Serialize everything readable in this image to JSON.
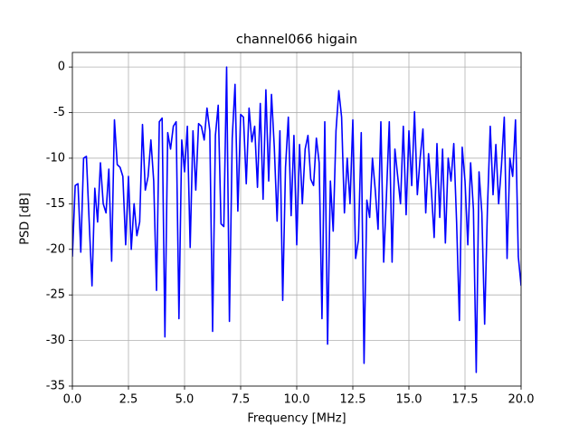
{
  "chart_data": {
    "type": "line",
    "title": "channel066 higain",
    "xlabel": "Frequency [MHz]",
    "ylabel": "PSD [dB]",
    "color": "#0000ff",
    "grid": true,
    "xlim": [
      0,
      20
    ],
    "ylim": [
      -35,
      1.6
    ],
    "xticks": [
      {
        "value": 0,
        "label": "0.0"
      },
      2.5,
      {
        "value": 5,
        "label": "5.0"
      },
      7.5,
      {
        "value": 10,
        "label": "10.0"
      },
      12.5,
      {
        "value": 15,
        "label": "15.0"
      },
      17.5,
      {
        "value": 20,
        "label": "20.0"
      }
    ],
    "yticks": [
      0,
      -5,
      -10,
      -15,
      -20,
      -25,
      -30,
      -35
    ],
    "x": [
      0,
      0.125,
      0.25,
      0.375,
      0.5,
      0.625,
      0.75,
      0.875,
      1,
      1.125,
      1.25,
      1.375,
      1.5,
      1.625,
      1.75,
      1.875,
      2,
      2.125,
      2.25,
      2.375,
      2.5,
      2.625,
      2.75,
      2.875,
      3,
      3.125,
      3.25,
      3.375,
      3.5,
      3.625,
      3.75,
      3.875,
      4,
      4.125,
      4.25,
      4.375,
      4.5,
      4.625,
      4.75,
      4.875,
      5,
      5.125,
      5.25,
      5.375,
      5.5,
      5.625,
      5.75,
      5.875,
      6,
      6.125,
      6.25,
      6.375,
      6.5,
      6.625,
      6.75,
      6.875,
      7,
      7.125,
      7.25,
      7.375,
      7.5,
      7.625,
      7.75,
      7.875,
      8,
      8.125,
      8.25,
      8.375,
      8.5,
      8.625,
      8.75,
      8.875,
      9,
      9.125,
      9.25,
      9.375,
      9.5,
      9.625,
      9.75,
      9.875,
      10,
      10.125,
      10.25,
      10.375,
      10.5,
      10.625,
      10.75,
      10.875,
      11,
      11.125,
      11.25,
      11.375,
      11.5,
      11.625,
      11.75,
      11.875,
      12,
      12.125,
      12.25,
      12.375,
      12.5,
      12.625,
      12.75,
      12.875,
      13,
      13.125,
      13.25,
      13.375,
      13.5,
      13.625,
      13.75,
      13.875,
      14,
      14.125,
      14.25,
      14.375,
      14.5,
      14.625,
      14.75,
      14.875,
      15,
      15.125,
      15.25,
      15.375,
      15.5,
      15.625,
      15.75,
      15.875,
      16,
      16.125,
      16.25,
      16.375,
      16.5,
      16.625,
      16.75,
      16.875,
      17,
      17.125,
      17.25,
      17.375,
      17.5,
      17.625,
      17.75,
      17.875,
      18,
      18.125,
      18.25,
      18.375,
      18.5,
      18.625,
      18.75,
      18.875,
      19,
      19.125,
      19.25,
      19.375,
      19.5,
      19.625,
      19.75,
      19.875,
      20
    ],
    "values": [
      -20.8,
      -13,
      -12.8,
      -20.3,
      -10,
      -9.8,
      -17,
      -24,
      -13.3,
      -17,
      -10.5,
      -15,
      -16,
      -11.2,
      -21.3,
      -5.8,
      -10.7,
      -11,
      -12,
      -19.5,
      -12,
      -20,
      -15,
      -18.5,
      -17,
      -6.3,
      -13.5,
      -12,
      -8,
      -12.5,
      -24.5,
      -6,
      -5.6,
      -29.6,
      -7.2,
      -9,
      -6.5,
      -6,
      -27.6,
      -8,
      -11.5,
      -6.5,
      -19.8,
      -7,
      -13.5,
      -6.2,
      -6.5,
      -8,
      -4.5,
      -7,
      -29,
      -7.5,
      -4.2,
      -17.2,
      -17.5,
      0,
      -27.9,
      -7.8,
      -1.9,
      -15.8,
      -5.2,
      -5.5,
      -12.8,
      -4.5,
      -8.2,
      -6.5,
      -13.2,
      -4,
      -14.5,
      -2.5,
      -12.5,
      -3,
      -8.8,
      -16.9,
      -7,
      -25.6,
      -11,
      -5.5,
      -16.3,
      -7.5,
      -19.5,
      -8.5,
      -15,
      -9,
      -7.5,
      -12.3,
      -13,
      -7.8,
      -10.5,
      -27.6,
      -6,
      -30.4,
      -12.5,
      -18,
      -7,
      -2.6,
      -5.5,
      -16,
      -10,
      -15,
      -5.8,
      -21,
      -19,
      -7.2,
      -32.5,
      -14.6,
      -16.5,
      -10,
      -13.5,
      -17.8,
      -6,
      -21.4,
      -14,
      -6,
      -21.4,
      -9,
      -12,
      -15,
      -6.5,
      -16.2,
      -7,
      -13,
      -4.9,
      -14,
      -10,
      -6.8,
      -16,
      -9.5,
      -13.5,
      -18.7,
      -8.4,
      -16.5,
      -9,
      -19.3,
      -10,
      -12.5,
      -8.4,
      -17,
      -27.8,
      -8.8,
      -12.5,
      -19.5,
      -10.5,
      -15.6,
      -33.5,
      -11.5,
      -16,
      -28.2,
      -15.5,
      -6.5,
      -14,
      -8.5,
      -15,
      -10.8,
      -5.5,
      -21,
      -10,
      -12,
      -5.8,
      -20.8,
      -24
    ]
  }
}
